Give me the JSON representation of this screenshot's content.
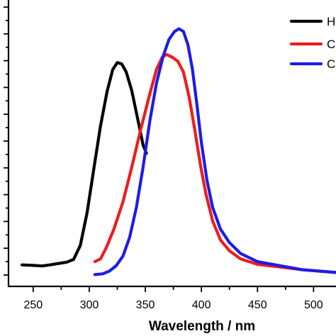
{
  "chart_data": {
    "type": "line",
    "xlabel": "Wavelength / nm",
    "ylabel": "",
    "xlim": [
      228,
      520
    ],
    "ylim": [
      0,
      1.0
    ],
    "x_ticks": [
      250,
      300,
      350,
      400,
      450,
      500
    ],
    "grid": false,
    "legend_placement": "top-right",
    "series": [
      {
        "name": "H",
        "color": "#000000",
        "points": [
          [
            240,
            0.048
          ],
          [
            250,
            0.046
          ],
          [
            258,
            0.044
          ],
          [
            265,
            0.048
          ],
          [
            272,
            0.053
          ],
          [
            280,
            0.058
          ],
          [
            286,
            0.068
          ],
          [
            292,
            0.12
          ],
          [
            298,
            0.24
          ],
          [
            304,
            0.4
          ],
          [
            310,
            0.56
          ],
          [
            316,
            0.69
          ],
          [
            321,
            0.77
          ],
          [
            325,
            0.795
          ],
          [
            329,
            0.79
          ],
          [
            333,
            0.76
          ],
          [
            338,
            0.69
          ],
          [
            343,
            0.59
          ],
          [
            348,
            0.49
          ],
          [
            351,
            0.46
          ]
        ]
      },
      {
        "name": "C",
        "color": "#ee1c1c",
        "points": [
          [
            305,
            0.06
          ],
          [
            310,
            0.07
          ],
          [
            315,
            0.11
          ],
          [
            322,
            0.18
          ],
          [
            330,
            0.28
          ],
          [
            338,
            0.41
          ],
          [
            346,
            0.55
          ],
          [
            354,
            0.68
          ],
          [
            360,
            0.77
          ],
          [
            365,
            0.815
          ],
          [
            369,
            0.825
          ],
          [
            374,
            0.815
          ],
          [
            379,
            0.8
          ],
          [
            384,
            0.76
          ],
          [
            389,
            0.67
          ],
          [
            394,
            0.55
          ],
          [
            399,
            0.42
          ],
          [
            404,
            0.31
          ],
          [
            410,
            0.21
          ],
          [
            417,
            0.14
          ],
          [
            425,
            0.1
          ],
          [
            435,
            0.07
          ],
          [
            450,
            0.05
          ],
          [
            470,
            0.04
          ],
          [
            490,
            0.03
          ],
          [
            520,
            0.02
          ]
        ]
      },
      {
        "name": "C",
        "color": "#1c1ce8",
        "points": [
          [
            305,
            0.012
          ],
          [
            312,
            0.015
          ],
          [
            318,
            0.025
          ],
          [
            324,
            0.045
          ],
          [
            330,
            0.08
          ],
          [
            336,
            0.15
          ],
          [
            342,
            0.26
          ],
          [
            348,
            0.41
          ],
          [
            354,
            0.58
          ],
          [
            360,
            0.72
          ],
          [
            366,
            0.82
          ],
          [
            371,
            0.88
          ],
          [
            376,
            0.91
          ],
          [
            380,
            0.92
          ],
          [
            384,
            0.91
          ],
          [
            388,
            0.86
          ],
          [
            392,
            0.77
          ],
          [
            396,
            0.64
          ],
          [
            400,
            0.5
          ],
          [
            405,
            0.36
          ],
          [
            410,
            0.26
          ],
          [
            417,
            0.18
          ],
          [
            425,
            0.13
          ],
          [
            435,
            0.09
          ],
          [
            450,
            0.06
          ],
          [
            470,
            0.045
          ],
          [
            490,
            0.03
          ],
          [
            520,
            0.02
          ]
        ]
      }
    ]
  }
}
